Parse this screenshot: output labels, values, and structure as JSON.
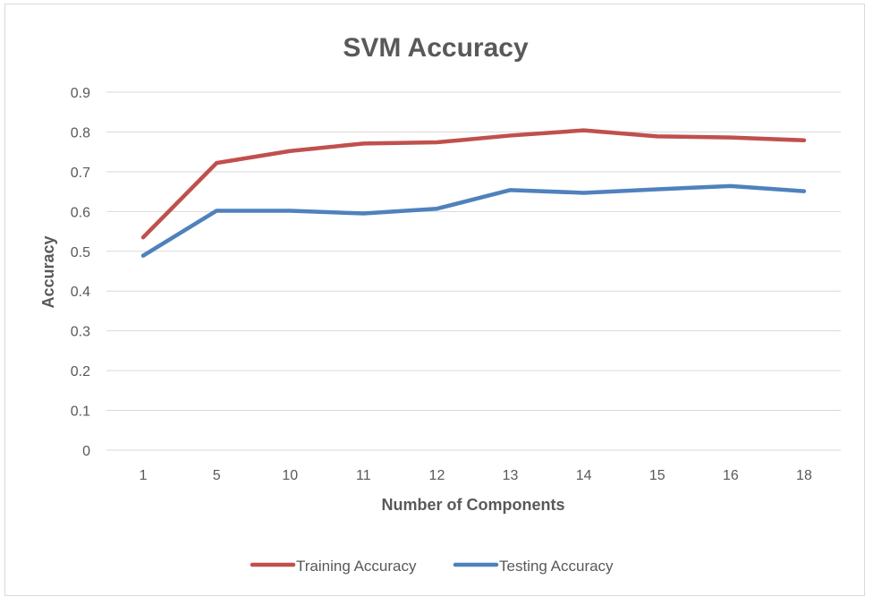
{
  "chart_data": {
    "type": "line",
    "title": "SVM Accuracy",
    "xlabel": "Number of Components",
    "ylabel": "Accuracy",
    "categories": [
      "1",
      "5",
      "10",
      "11",
      "12",
      "13",
      "14",
      "15",
      "16",
      "18"
    ],
    "ylim": [
      0,
      0.9
    ],
    "yticks": [
      "0",
      "0.1",
      "0.2",
      "0.3",
      "0.4",
      "0.5",
      "0.6",
      "0.7",
      "0.8",
      "0.9"
    ],
    "grid": true,
    "legend_position": "bottom",
    "series": [
      {
        "name": "Training Accuracy",
        "color": "#c0504d",
        "values": [
          0.535,
          0.722,
          0.752,
          0.771,
          0.774,
          0.791,
          0.804,
          0.789,
          0.786,
          0.779
        ]
      },
      {
        "name": "Testing Accuracy",
        "color": "#4f81bd",
        "values": [
          0.489,
          0.602,
          0.602,
          0.595,
          0.607,
          0.654,
          0.647,
          0.656,
          0.664,
          0.651
        ]
      }
    ]
  }
}
